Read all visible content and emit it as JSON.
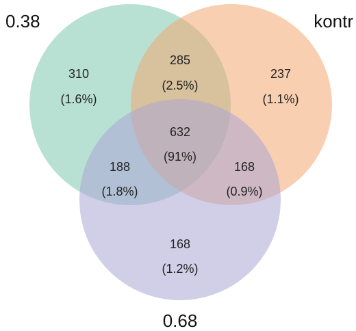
{
  "sets": [
    {
      "id": "a",
      "label": "0.38",
      "color": "#7dc8b0"
    },
    {
      "id": "b",
      "label": "kontr",
      "color": "#f2a870"
    },
    {
      "id": "c",
      "label": "0.68",
      "color": "#aba6d4"
    }
  ],
  "regions": {
    "a_only": {
      "count": "310",
      "pct": "(1.6%)"
    },
    "ab_only": {
      "count": "285",
      "pct": "(2.5%)"
    },
    "b_only": {
      "count": "237",
      "pct": "(1.1%)"
    },
    "abc": {
      "count": "632",
      "pct": "(91%)"
    },
    "ac_only": {
      "count": "188",
      "pct": "(1.8%)"
    },
    "bc_only": {
      "count": "168",
      "pct": "(0.9%)"
    },
    "c_only": {
      "count": "168",
      "pct": "(1.2%)"
    }
  }
}
